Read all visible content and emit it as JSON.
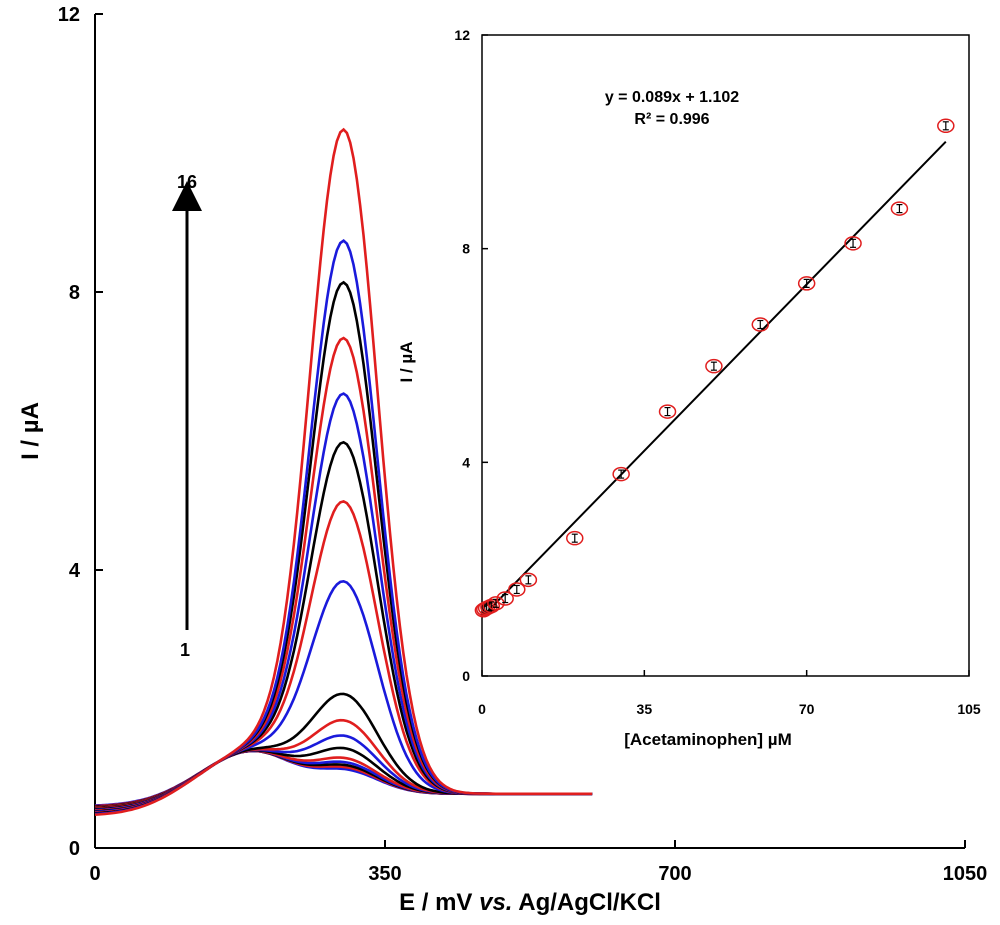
{
  "chart_data": [
    {
      "type": "line",
      "xlabel_main": "E / mV ",
      "xlabel_vs": "vs.",
      "xlabel_ref": " Ag/AgCl/KCl",
      "ylabel": "I / µA",
      "xlim": [
        0,
        1050
      ],
      "ylim": [
        0,
        12
      ],
      "x_ticks": [
        0,
        350,
        700,
        1050
      ],
      "y_ticks": [
        0,
        4,
        8,
        12
      ],
      "annotation": {
        "start_label": "1",
        "end_label": "16"
      },
      "series": [
        {
          "color": "#1a1adb",
          "peak": 1.1,
          "base": 0.6
        },
        {
          "color": "#e01e1e",
          "peak": 1.13,
          "base": 0.59
        },
        {
          "color": "#000000",
          "peak": 1.16,
          "base": 0.58
        },
        {
          "color": "#1a1adb",
          "peak": 1.2,
          "base": 0.57
        },
        {
          "color": "#e01e1e",
          "peak": 1.26,
          "base": 0.57
        },
        {
          "color": "#000000",
          "peak": 1.4,
          "base": 0.56
        },
        {
          "color": "#1a1adb",
          "peak": 1.58,
          "base": 0.55
        },
        {
          "color": "#e01e1e",
          "peak": 1.8,
          "base": 0.55
        },
        {
          "color": "#000000",
          "peak": 2.18,
          "base": 0.54
        },
        {
          "color": "#1a1adb",
          "peak": 3.8,
          "base": 0.53
        },
        {
          "color": "#e01e1e",
          "peak": 4.95,
          "base": 0.52
        },
        {
          "color": "#000000",
          "peak": 5.8,
          "base": 0.51
        },
        {
          "color": "#1a1adb",
          "peak": 6.5,
          "base": 0.5
        },
        {
          "color": "#e01e1e",
          "peak": 7.3,
          "base": 0.49
        },
        {
          "color": "#000000",
          "peak": 8.1,
          "base": 0.48
        },
        {
          "color": "#1a1adb",
          "peak": 8.7,
          "base": 0.47
        },
        {
          "color": "#e01e1e",
          "peak": 10.3,
          "base": 0.46
        }
      ]
    },
    {
      "type": "scatter",
      "xlabel": "[Acetaminophen] µM",
      "ylabel": "I / µA",
      "xlim": [
        0,
        105
      ],
      "ylim": [
        0,
        12
      ],
      "x_ticks": [
        0,
        35,
        70,
        105
      ],
      "y_ticks": [
        0,
        4,
        8,
        12
      ],
      "equation": "y = 0.089x + 1.102",
      "r_squared": "R² = 0.996",
      "fit": {
        "slope": 0.089,
        "intercept": 1.102,
        "x_range": [
          0,
          100
        ]
      },
      "points": [
        {
          "x": 0.3,
          "y": 1.23
        },
        {
          "x": 0.6,
          "y": 1.25
        },
        {
          "x": 1.0,
          "y": 1.27
        },
        {
          "x": 1.5,
          "y": 1.29
        },
        {
          "x": 2.0,
          "y": 1.31
        },
        {
          "x": 3.0,
          "y": 1.36
        },
        {
          "x": 5.0,
          "y": 1.45
        },
        {
          "x": 7.5,
          "y": 1.62
        },
        {
          "x": 10,
          "y": 1.8
        },
        {
          "x": 20,
          "y": 2.58
        },
        {
          "x": 30,
          "y": 3.78
        },
        {
          "x": 40,
          "y": 4.95
        },
        {
          "x": 50,
          "y": 5.8
        },
        {
          "x": 60,
          "y": 6.58
        },
        {
          "x": 70,
          "y": 7.35
        },
        {
          "x": 80,
          "y": 8.1
        },
        {
          "x": 90,
          "y": 8.75
        },
        {
          "x": 100,
          "y": 10.3
        }
      ]
    }
  ]
}
